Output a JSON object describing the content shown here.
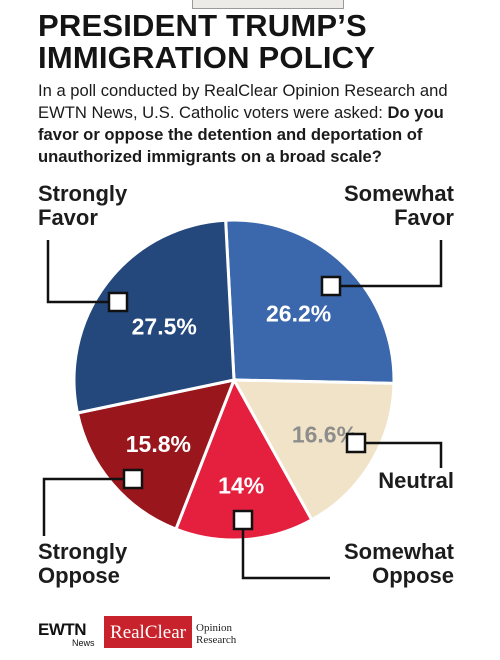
{
  "header": {
    "title_line1": "PRESIDENT TRUMP’S",
    "title_line2": "IMMIGRATION POLICY",
    "intro_plain": "In a poll conducted by RealClear Opinion Research and EWTN News, U.S. Catholic voters were asked: ",
    "intro_bold": "Do you favor or oppose the detention and deportation of unauthorized immigrants on a broad scale?"
  },
  "chart_data": {
    "type": "pie",
    "slices": [
      {
        "label_line1": "Somewhat",
        "label_line2": "Favor",
        "value": 26.2,
        "display": "26.2%",
        "color": "#3b67ad",
        "text_color": "#ffffff"
      },
      {
        "label_line1": "Neutral",
        "label_line2": "",
        "value": 16.6,
        "display": "16.6%",
        "color": "#f0e3c8",
        "text_color": "#8d8d8d"
      },
      {
        "label_line1": "Somewhat",
        "label_line2": "Oppose",
        "value": 14,
        "display": "14%",
        "color": "#e5203f",
        "text_color": "#ffffff"
      },
      {
        "label_line1": "Strongly",
        "label_line2": "Oppose",
        "value": 15.8,
        "display": "15.8%",
        "color": "#99161d",
        "text_color": "#ffffff"
      },
      {
        "label_line1": "Strongly",
        "label_line2": "Favor",
        "value": 27.5,
        "display": "27.5%",
        "color": "#24477c",
        "text_color": "#ffffff"
      }
    ]
  },
  "footer": {
    "ewtn": "EWTN",
    "news": "News",
    "realclear": "RealClear",
    "opinion": "Opinion",
    "research": "Research"
  }
}
